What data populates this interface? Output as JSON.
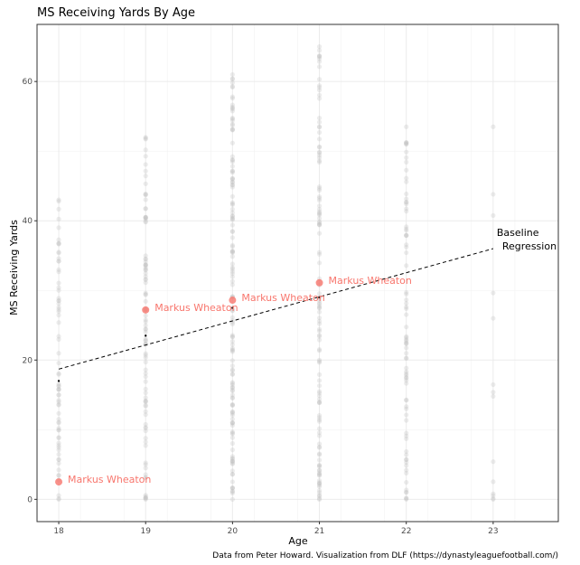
{
  "chart_data": {
    "type": "scatter",
    "title": "MS Receiving Yards By Age",
    "xlabel": "Age",
    "ylabel": "MS Receiving Yards",
    "caption": "Data from Peter Howard. Visualization from DLF (https://dynastyleaguefootball.com/)",
    "xlim": [
      17.75,
      23.75
    ],
    "ylim": [
      -3.2,
      68.2
    ],
    "x_ticks": [
      18,
      19,
      20,
      21,
      22,
      23
    ],
    "y_ticks": [
      0,
      20,
      40,
      60
    ],
    "grid": true,
    "background_points": {
      "color": "#bfbfbf",
      "by_age": [
        {
          "age": 18,
          "max": 43,
          "count": 70
        },
        {
          "age": 19,
          "max": 52,
          "count": 95
        },
        {
          "age": 20,
          "max": 61,
          "count": 140
        },
        {
          "age": 21,
          "max": 65,
          "count": 120
        },
        {
          "age": 22,
          "max": 53.5,
          "count": 80
        },
        {
          "age": 23,
          "max": 53.5,
          "count": 14
        }
      ]
    },
    "baseline_points": [
      {
        "age": 18,
        "value": 17
      },
      {
        "age": 19,
        "value": 23.5
      },
      {
        "age": 20,
        "value": 27.5
      },
      {
        "age": 21,
        "value": 29
      }
    ],
    "regression_line": {
      "x": [
        18,
        23
      ],
      "y": [
        18.7,
        36
      ],
      "label_line1": "Baseline",
      "label_line2": "Regression"
    },
    "highlighted_series": {
      "name": "Markus Wheaton",
      "color": "#f8766d",
      "points": [
        {
          "age": 18,
          "value": 2.5,
          "label": "Markus Wheaton"
        },
        {
          "age": 19,
          "value": 27.2,
          "label": "Markus Wheaton"
        },
        {
          "age": 20,
          "value": 28.6,
          "label": "Markus Wheaton"
        },
        {
          "age": 21,
          "value": 31.1,
          "label": "Markus Wheaton"
        }
      ]
    }
  }
}
